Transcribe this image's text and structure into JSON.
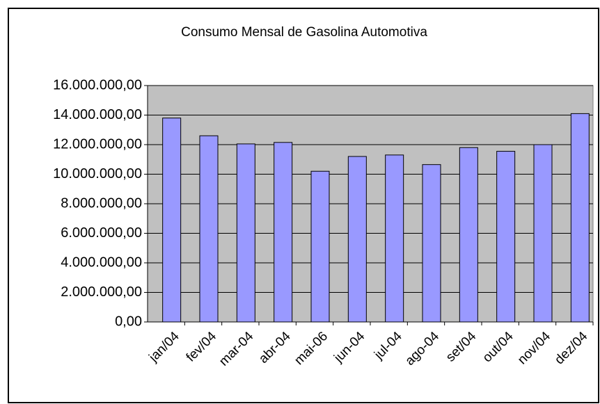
{
  "chart_data": {
    "type": "bar",
    "title": "Consumo Mensal de Gasolina Automotiva",
    "categories": [
      "jan/04",
      "fev/04",
      "mar-04",
      "abr-04",
      "mai-06",
      "jun-04",
      "jul-04",
      "ago-04",
      "set/04",
      "out/04",
      "nov/04",
      "dez/04"
    ],
    "values": [
      13800000,
      12600000,
      12050000,
      12150000,
      10200000,
      11200000,
      11300000,
      10650000,
      11800000,
      11550000,
      12000000,
      14100000
    ],
    "color": "#9999ff",
    "ylim": [
      0,
      16000000
    ],
    "yticks": [
      {
        "value": 0,
        "label": "0,00"
      },
      {
        "value": 2000000,
        "label": "2.000.000,00"
      },
      {
        "value": 4000000,
        "label": "4.000.000,00"
      },
      {
        "value": 6000000,
        "label": "6.000.000,00"
      },
      {
        "value": 8000000,
        "label": "8.000.000,00"
      },
      {
        "value": 10000000,
        "label": "10.000.000,00"
      },
      {
        "value": 12000000,
        "label": "12.000.000,00"
      },
      {
        "value": 14000000,
        "label": "14.000.000,00"
      },
      {
        "value": 16000000,
        "label": "16.000.000,00"
      }
    ],
    "grid": true
  }
}
